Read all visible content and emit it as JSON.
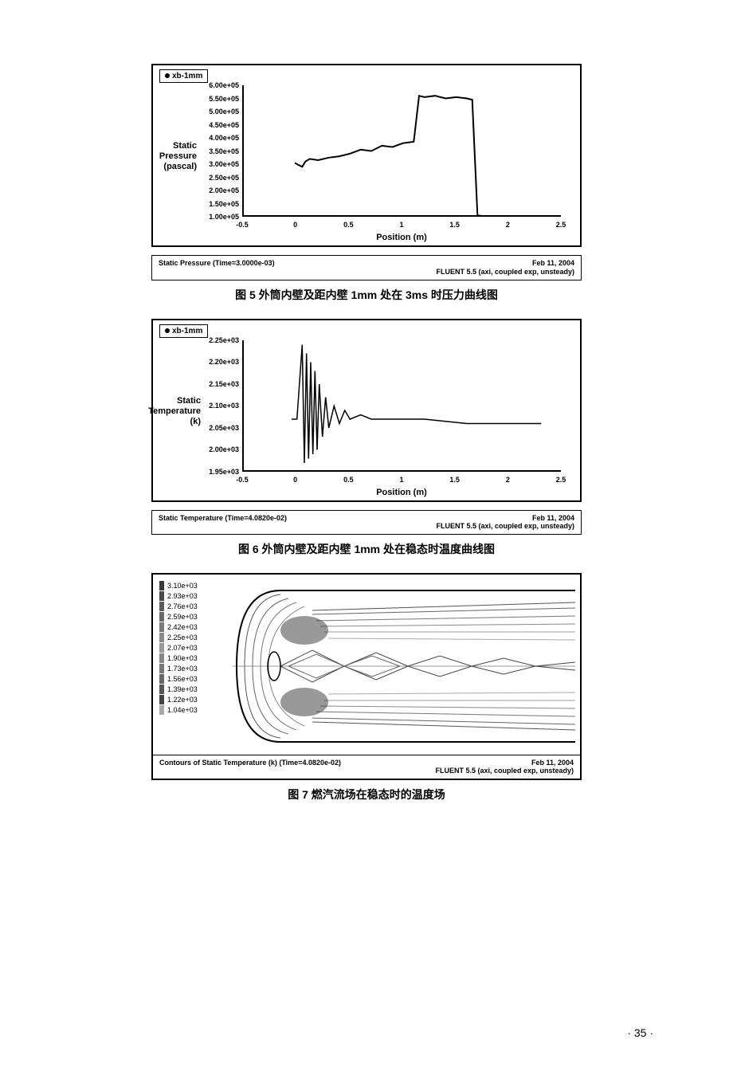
{
  "figure5": {
    "legend_label": "xb-1mm",
    "y_axis_label": "Static\nPressure\n(pascal)",
    "x_axis_label": "Position (m)",
    "y_ticks": [
      "6.00e+05",
      "5.50e+05",
      "5.00e+05",
      "4.50e+05",
      "4.00e+05",
      "3.50e+05",
      "3.00e+05",
      "2.50e+05",
      "2.00e+05",
      "1.50e+05",
      "1.00e+05"
    ],
    "x_ticks": [
      "-0.5",
      "0",
      "0.5",
      "1",
      "1.5",
      "2",
      "2.5"
    ],
    "footer_left": "Static Pressure (Time=3.0000e-03)",
    "footer_date": "Feb 11, 2004",
    "footer_app": "FLUENT 5.5 (axi, coupled exp, unsteady)",
    "caption": "图 5  外筒内壁及距内壁 1mm 处在 3ms 时压力曲线图",
    "series": [
      {
        "x": -0.02,
        "y": 3.05
      },
      {
        "x": 0.0,
        "y": 3.0
      },
      {
        "x": 0.05,
        "y": 2.9
      },
      {
        "x": 0.08,
        "y": 3.1
      },
      {
        "x": 0.12,
        "y": 3.2
      },
      {
        "x": 0.2,
        "y": 3.15
      },
      {
        "x": 0.3,
        "y": 3.25
      },
      {
        "x": 0.4,
        "y": 3.3
      },
      {
        "x": 0.5,
        "y": 3.4
      },
      {
        "x": 0.6,
        "y": 3.55
      },
      {
        "x": 0.7,
        "y": 3.5
      },
      {
        "x": 0.8,
        "y": 3.7
      },
      {
        "x": 0.9,
        "y": 3.65
      },
      {
        "x": 1.0,
        "y": 3.8
      },
      {
        "x": 1.1,
        "y": 3.85
      },
      {
        "x": 1.15,
        "y": 5.6
      },
      {
        "x": 1.2,
        "y": 5.55
      },
      {
        "x": 1.3,
        "y": 5.6
      },
      {
        "x": 1.4,
        "y": 5.5
      },
      {
        "x": 1.5,
        "y": 5.55
      },
      {
        "x": 1.6,
        "y": 5.5
      },
      {
        "x": 1.65,
        "y": 5.45
      },
      {
        "x": 1.7,
        "y": 1.05
      },
      {
        "x": 1.8,
        "y": 1.0
      },
      {
        "x": 2.0,
        "y": 1.0
      },
      {
        "x": 2.3,
        "y": 1.0
      }
    ],
    "x_range": [
      -0.5,
      2.5
    ],
    "y_range": [
      1.0,
      6.0
    ]
  },
  "figure6": {
    "legend_label": "xb-1mm",
    "y_axis_label": "Static\nTemperature\n(k)",
    "x_axis_label": "Position (m)",
    "y_ticks": [
      "2.25e+03",
      "2.20e+03",
      "2.15e+03",
      "2.10e+03",
      "2.05e+03",
      "2.00e+03",
      "1.95e+03"
    ],
    "x_ticks": [
      "-0.5",
      "0",
      "0.5",
      "1",
      "1.5",
      "2",
      "2.5"
    ],
    "footer_left": "Static Temperature (Time=4.0820e-02)",
    "footer_date": "Feb 11, 2004",
    "footer_app": "FLUENT 5.5 (axi, coupled exp, unsteady)",
    "caption": "图 6  外筒内壁及距内壁 1mm 处在稳态时温度曲线图",
    "series": [
      {
        "x": -0.05,
        "y": 2.07
      },
      {
        "x": 0.0,
        "y": 2.07
      },
      {
        "x": 0.05,
        "y": 2.24
      },
      {
        "x": 0.07,
        "y": 1.97
      },
      {
        "x": 0.09,
        "y": 2.22
      },
      {
        "x": 0.11,
        "y": 1.98
      },
      {
        "x": 0.13,
        "y": 2.2
      },
      {
        "x": 0.15,
        "y": 1.99
      },
      {
        "x": 0.17,
        "y": 2.18
      },
      {
        "x": 0.19,
        "y": 2.0
      },
      {
        "x": 0.21,
        "y": 2.15
      },
      {
        "x": 0.24,
        "y": 2.03
      },
      {
        "x": 0.27,
        "y": 2.12
      },
      {
        "x": 0.3,
        "y": 2.05
      },
      {
        "x": 0.35,
        "y": 2.1
      },
      {
        "x": 0.4,
        "y": 2.06
      },
      {
        "x": 0.45,
        "y": 2.09
      },
      {
        "x": 0.5,
        "y": 2.07
      },
      {
        "x": 0.6,
        "y": 2.08
      },
      {
        "x": 0.7,
        "y": 2.07
      },
      {
        "x": 0.9,
        "y": 2.07
      },
      {
        "x": 1.2,
        "y": 2.07
      },
      {
        "x": 1.6,
        "y": 2.06
      },
      {
        "x": 1.9,
        "y": 2.06
      },
      {
        "x": 2.3,
        "y": 2.06
      }
    ],
    "x_range": [
      -0.5,
      2.5
    ],
    "y_range": [
      1.95,
      2.25
    ]
  },
  "figure7": {
    "legend_values": [
      "3.10e+03",
      "2.93e+03",
      "2.76e+03",
      "2.59e+03",
      "2.42e+03",
      "2.25e+03",
      "2.07e+03",
      "1.90e+03",
      "1.73e+03",
      "1.56e+03",
      "1.39e+03",
      "1.22e+03",
      "1.04e+03"
    ],
    "legend_colors": [
      "#3a3a3a",
      "#4a4a4a",
      "#5a5a5a",
      "#6a6a6a",
      "#7a7a7a",
      "#8a8a8a",
      "#9a9a9a",
      "#888888",
      "#777777",
      "#666666",
      "#555555",
      "#444444",
      "#a8a8a8"
    ],
    "footer_left": "Contours of Static Temperature (k) (Time=4.0820e-02)",
    "footer_date": "Feb 11, 2004",
    "footer_app": "FLUENT 5.5 (axi, coupled exp, unsteady)",
    "caption": "图 7  燃汽流场在稳态时的温度场"
  },
  "page_number": "· 35 ·"
}
